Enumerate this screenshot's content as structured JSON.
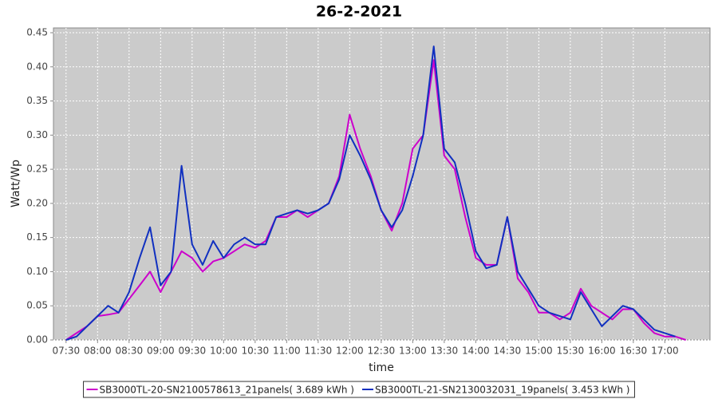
{
  "chart_data": {
    "type": "line",
    "title": "26-2-2021",
    "x_label": "time",
    "y_label": "Watt/Wp",
    "x": [
      450,
      460,
      470,
      480,
      490,
      500,
      510,
      520,
      530,
      540,
      550,
      560,
      570,
      580,
      590,
      600,
      610,
      620,
      630,
      640,
      650,
      660,
      670,
      680,
      690,
      700,
      710,
      720,
      730,
      740,
      750,
      760,
      770,
      780,
      790,
      800,
      810,
      820,
      830,
      840,
      850,
      860,
      870,
      880,
      890,
      900,
      910,
      920,
      930,
      940,
      950,
      960,
      970,
      980,
      990,
      1000,
      1010,
      1020,
      1030,
      1040
    ],
    "series": [
      {
        "name": "SB3000TL-20-SN2100578613_21panels( 3.689 kWh )",
        "color": "#cc00cc",
        "values": [
          0.0,
          0.01,
          0.02,
          0.035,
          0.037,
          0.04,
          0.06,
          0.08,
          0.1,
          0.07,
          0.1,
          0.13,
          0.12,
          0.1,
          0.115,
          0.12,
          0.13,
          0.14,
          0.135,
          0.145,
          0.18,
          0.18,
          0.19,
          0.18,
          0.19,
          0.2,
          0.24,
          0.33,
          0.28,
          0.24,
          0.19,
          0.16,
          0.2,
          0.28,
          0.3,
          0.41,
          0.27,
          0.25,
          0.18,
          0.12,
          0.11,
          0.11,
          0.18,
          0.09,
          0.07,
          0.04,
          0.04,
          0.03,
          0.04,
          0.075,
          0.05,
          0.04,
          0.03,
          0.045,
          0.045,
          0.025,
          0.01,
          0.005,
          0.005,
          0.0
        ]
      },
      {
        "name": "SB3000TL-21-SN2130032031_19panels( 3.453 kWh )",
        "color": "#1030c0",
        "values": [
          0.0,
          0.005,
          0.02,
          0.035,
          0.05,
          0.04,
          0.07,
          0.12,
          0.165,
          0.08,
          0.1,
          0.255,
          0.14,
          0.11,
          0.145,
          0.12,
          0.14,
          0.15,
          0.14,
          0.14,
          0.18,
          0.185,
          0.19,
          0.185,
          0.19,
          0.2,
          0.235,
          0.3,
          0.27,
          0.235,
          0.19,
          0.165,
          0.19,
          0.24,
          0.3,
          0.43,
          0.28,
          0.26,
          0.2,
          0.13,
          0.105,
          0.11,
          0.18,
          0.1,
          0.075,
          0.05,
          0.04,
          0.035,
          0.03,
          0.07,
          0.045,
          0.02,
          0.035,
          0.05,
          0.045,
          0.03,
          0.015,
          0.01,
          0.005,
          null
        ]
      }
    ],
    "xlim": [
      438,
      1063
    ],
    "xticks": [
      {
        "value": 450,
        "label": "07:30"
      },
      {
        "value": 480,
        "label": "08:00"
      },
      {
        "value": 510,
        "label": "08:30"
      },
      {
        "value": 540,
        "label": "09:00"
      },
      {
        "value": 570,
        "label": "09:30"
      },
      {
        "value": 600,
        "label": "10:00"
      },
      {
        "value": 630,
        "label": "10:30"
      },
      {
        "value": 660,
        "label": "11:00"
      },
      {
        "value": 690,
        "label": "11:30"
      },
      {
        "value": 720,
        "label": "12:00"
      },
      {
        "value": 750,
        "label": "12:30"
      },
      {
        "value": 780,
        "label": "13:00"
      },
      {
        "value": 810,
        "label": "13:30"
      },
      {
        "value": 840,
        "label": "14:00"
      },
      {
        "value": 870,
        "label": "14:30"
      },
      {
        "value": 900,
        "label": "15:00"
      },
      {
        "value": 930,
        "label": "15:30"
      },
      {
        "value": 960,
        "label": "16:00"
      },
      {
        "value": 990,
        "label": "16:30"
      },
      {
        "value": 1020,
        "label": "17:00"
      }
    ],
    "ylim": [
      0,
      0.457
    ],
    "yticks": [
      {
        "value": 0,
        "label": "0.00"
      },
      {
        "value": 0.05,
        "label": "0.05"
      },
      {
        "value": 0.1,
        "label": "0.10"
      },
      {
        "value": 0.15,
        "label": "0.15"
      },
      {
        "value": 0.2,
        "label": "0.20"
      },
      {
        "value": 0.25,
        "label": "0.25"
      },
      {
        "value": 0.3,
        "label": "0.30"
      },
      {
        "value": 0.35,
        "label": "0.35"
      },
      {
        "value": 0.4,
        "label": "0.40"
      },
      {
        "value": 0.45,
        "label": "0.45"
      }
    ],
    "grid": true
  }
}
